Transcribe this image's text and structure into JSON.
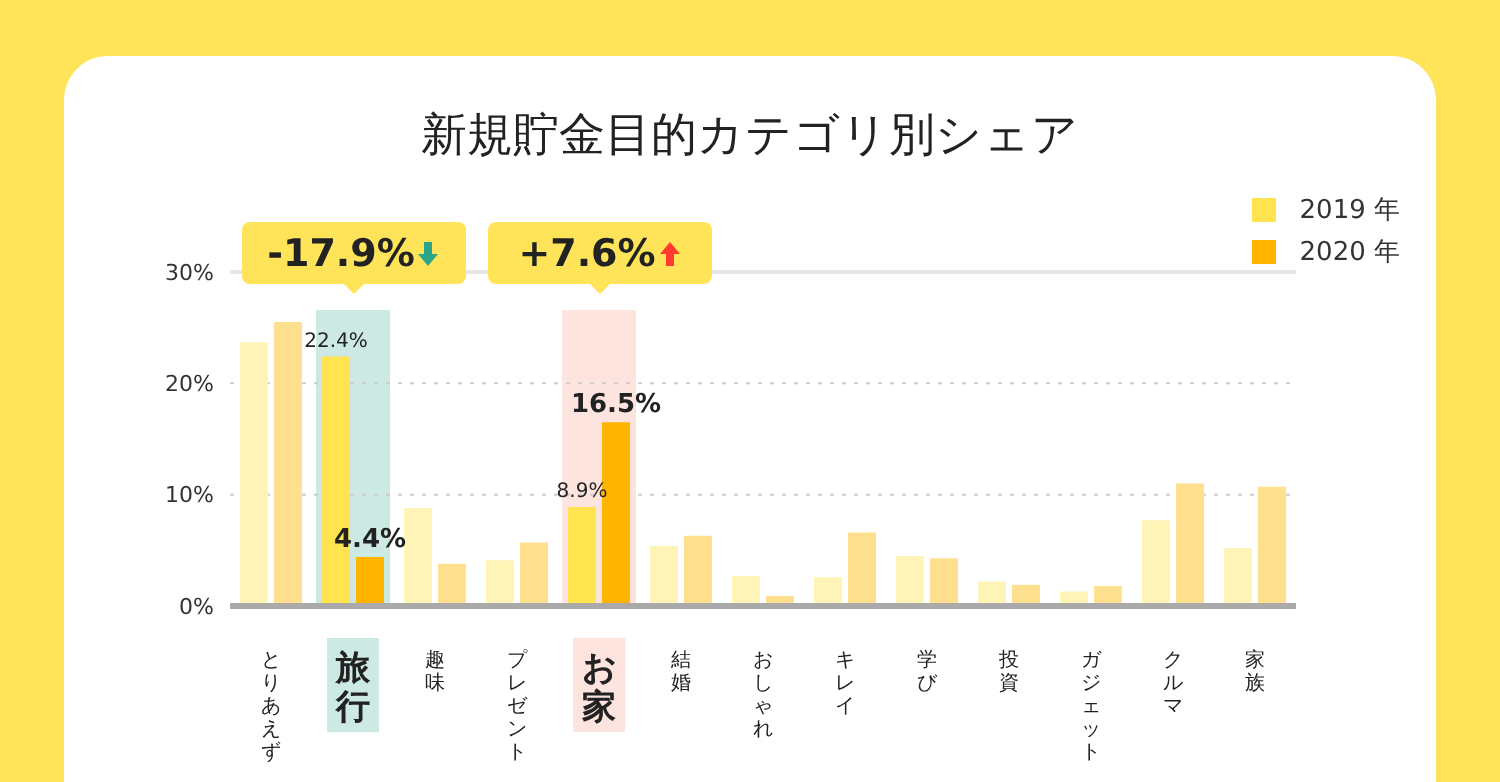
{
  "chart_data": {
    "type": "bar",
    "title": "新規貯金目的カテゴリ別シェア",
    "categories": [
      "とりあえず",
      "旅行",
      "趣味",
      "プレゼント",
      "お家",
      "結婚",
      "おしゃれ",
      "キレイ",
      "学び",
      "投資",
      "ガジェット",
      "クルマ",
      "家族"
    ],
    "series": [
      {
        "name": "2019 年",
        "color": "#ffe450",
        "colors": [
          "#fff4b8",
          "#ffe450",
          "#fff4b8",
          "#fff4b8",
          "#ffe450",
          "#fff4b8",
          "#fff4b8",
          "#fff4b8",
          "#fff4b8",
          "#fff4b8",
          "#fff4b8",
          "#fff4b8",
          "#fff4b8"
        ],
        "values": [
          23.7,
          22.4,
          8.8,
          4.1,
          8.9,
          5.4,
          2.7,
          2.6,
          4.5,
          2.2,
          1.3,
          7.7,
          5.2
        ],
        "value_labels": [
          null,
          "22.4%",
          null,
          null,
          "8.9%",
          null,
          null,
          null,
          null,
          null,
          null,
          null,
          null
        ]
      },
      {
        "name": "2020 年",
        "color": "#ffb400",
        "colors": [
          "#ffe08f",
          "#ffb400",
          "#ffe08f",
          "#ffe08f",
          "#ffb400",
          "#ffe08f",
          "#ffe08f",
          "#ffe08f",
          "#ffe08f",
          "#ffe08f",
          "#ffe08f",
          "#ffe08f",
          "#ffe08f"
        ],
        "values": [
          25.5,
          4.4,
          3.8,
          5.7,
          16.5,
          6.3,
          0.9,
          6.6,
          4.3,
          1.9,
          1.8,
          11.0,
          10.7
        ],
        "value_labels": [
          null,
          "4.4%",
          null,
          null,
          "16.5%",
          null,
          null,
          null,
          null,
          null,
          null,
          null,
          null
        ]
      }
    ],
    "ylim": [
      0,
      30
    ],
    "yticks": [
      {
        "value": 0,
        "label": "0%"
      },
      {
        "value": 10,
        "label": "10%"
      },
      {
        "value": 20,
        "label": "20%"
      },
      {
        "value": 30,
        "label": "30%"
      }
    ],
    "grid": "y",
    "legend": "top right",
    "bands": [
      {
        "axis": "x",
        "from": "旅行",
        "to": "旅行",
        "color": "#cde9e4"
      },
      {
        "axis": "x",
        "from": "お家",
        "to": "お家",
        "color": "#fde4df"
      }
    ],
    "annotations": [
      "-17.9%",
      "+7.6%"
    ]
  }
}
